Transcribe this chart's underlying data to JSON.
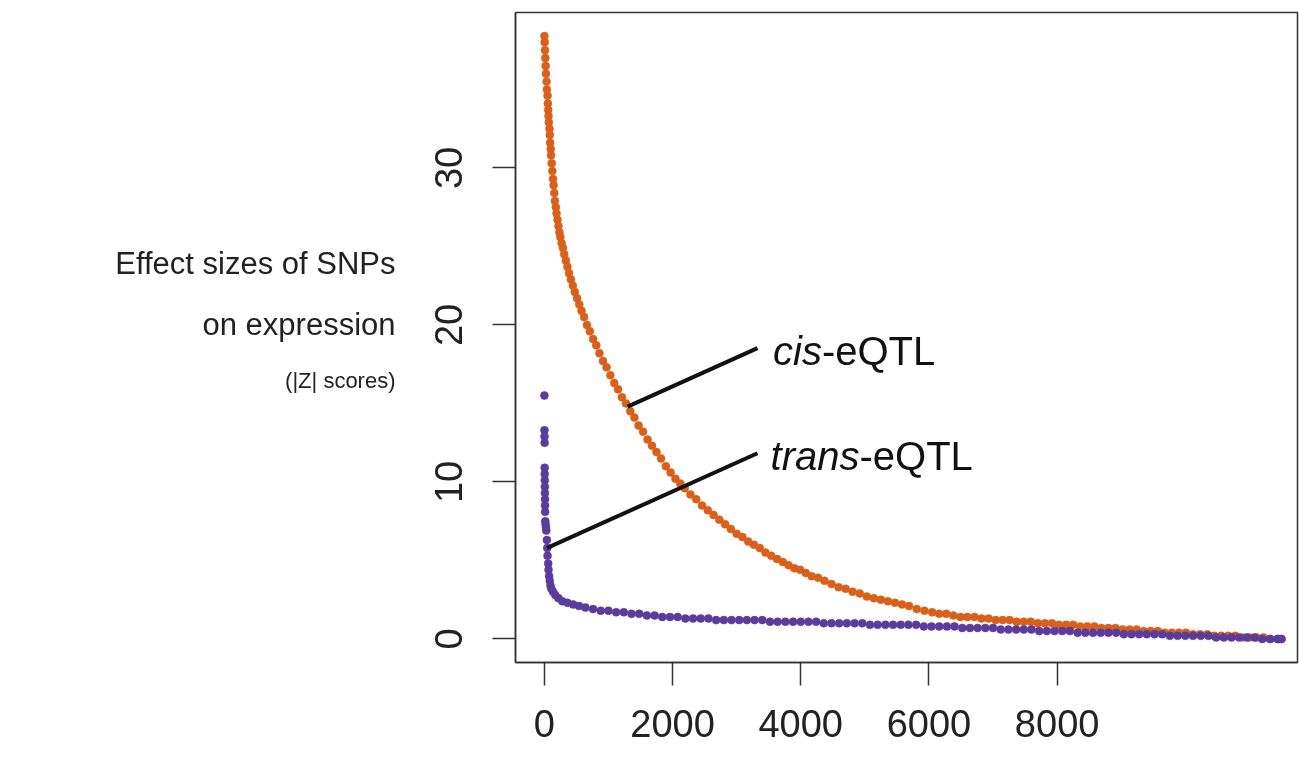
{
  "chart_data": {
    "type": "scatter",
    "ylabel": "Effect sizes of SNPs\non expression\n(|Z| scores)",
    "xlim": [
      -450,
      11750
    ],
    "ylim": [
      -1.5,
      39.9
    ],
    "xticks": [
      0,
      2000,
      4000,
      6000,
      8000
    ],
    "yticks": [
      0,
      10,
      20,
      30
    ],
    "marker": "circle",
    "series": [
      {
        "color": "#d9601a",
        "x": [
          1,
          5,
          10,
          15,
          20,
          25,
          35,
          40,
          50,
          55,
          60,
          65,
          70,
          80,
          85,
          90,
          100,
          105,
          115,
          125,
          135,
          145,
          155,
          165,
          180,
          190,
          205,
          220,
          235,
          250,
          270,
          290,
          310,
          335,
          360,
          385,
          415,
          445,
          475,
          510,
          545,
          580,
          620,
          665,
          710,
          760,
          810,
          860,
          915,
          970,
          1030,
          1090,
          1150,
          1210,
          1275,
          1340,
          1405,
          1470,
          1540,
          1610,
          1680,
          1750,
          1820,
          1895,
          1970,
          2045,
          2120,
          2190,
          2280,
          2370,
          2460,
          2550,
          2640,
          2730,
          2820,
          2910,
          3000,
          3090,
          3180,
          3270,
          3360,
          3450,
          3540,
          3630,
          3720,
          3810,
          3900,
          3990,
          4080,
          4170,
          4270,
          4370,
          4480,
          4590,
          4700,
          4810,
          4920,
          5030,
          5140,
          5250,
          5360,
          5470,
          5580,
          5690,
          5810,
          5930,
          6050,
          6160,
          6270,
          6380,
          6490,
          6600,
          6710,
          6820,
          6930,
          7040,
          7150,
          7260,
          7370,
          7480,
          7590,
          7700,
          7810,
          7920,
          8030,
          8140,
          8250,
          8360,
          8470,
          8580,
          8690,
          8800,
          8910,
          9020,
          9130,
          9240,
          9350,
          9460,
          9570,
          9680,
          9790,
          9900,
          10010,
          10120,
          10230,
          10340,
          10450,
          10560,
          10670,
          10780,
          10890,
          11000,
          11110,
          11220,
          11330,
          11440,
          11500
        ],
        "values": [
          38.4,
          38.0,
          37.5,
          37.0,
          36.5,
          36.0,
          35.5,
          35.0,
          34.6,
          34.1,
          33.7,
          33.3,
          32.9,
          32.5,
          32.1,
          31.6,
          31.2,
          30.8,
          30.3,
          29.8,
          29.3,
          28.9,
          28.4,
          27.9,
          27.5,
          27.1,
          26.7,
          26.3,
          25.9,
          25.6,
          25.2,
          24.9,
          24.5,
          24.1,
          23.7,
          23.3,
          22.9,
          22.5,
          22.1,
          21.7,
          21.3,
          20.9,
          20.5,
          20.0,
          19.6,
          19.1,
          18.7,
          18.2,
          17.7,
          17.3,
          16.8,
          16.3,
          15.9,
          15.4,
          15.0,
          14.5,
          14.1,
          13.6,
          13.2,
          12.7,
          12.3,
          11.9,
          11.5,
          11.0,
          10.6,
          10.2,
          9.9,
          9.6,
          9.2,
          8.9,
          8.5,
          8.2,
          7.9,
          7.6,
          7.3,
          7.0,
          6.7,
          6.5,
          6.2,
          6.0,
          5.8,
          5.5,
          5.3,
          5.1,
          4.9,
          4.7,
          4.5,
          4.4,
          4.2,
          4.0,
          3.9,
          3.7,
          3.5,
          3.3,
          3.2,
          3.0,
          2.9,
          2.7,
          2.6,
          2.5,
          2.4,
          2.3,
          2.2,
          2.1,
          1.9,
          1.8,
          1.7,
          1.6,
          1.6,
          1.5,
          1.4,
          1.4,
          1.4,
          1.3,
          1.3,
          1.2,
          1.2,
          1.2,
          1.1,
          1.1,
          1.1,
          1.0,
          1.0,
          1.0,
          0.9,
          0.9,
          0.9,
          0.8,
          0.8,
          0.8,
          0.7,
          0.7,
          0.7,
          0.6,
          0.6,
          0.6,
          0.5,
          0.5,
          0.5,
          0.4,
          0.4,
          0.4,
          0.4,
          0.3,
          0.3,
          0.3,
          0.2,
          0.2,
          0.2,
          0.2,
          0.1,
          0.1,
          0.1,
          0.1,
          0.0,
          0.0,
          0.0
        ]
      },
      {
        "color": "#5a3c9c",
        "x": [
          1,
          2,
          3,
          4,
          5,
          6,
          7,
          8,
          9,
          10,
          11,
          12,
          15,
          20,
          25,
          30,
          40,
          45,
          50,
          60,
          65,
          75,
          85,
          95,
          110,
          135,
          170,
          220,
          280,
          360,
          450,
          540,
          640,
          760,
          880,
          1000,
          1120,
          1240,
          1360,
          1480,
          1600,
          1720,
          1840,
          1960,
          2080,
          2200,
          2320,
          2440,
          2560,
          2680,
          2800,
          2920,
          3040,
          3160,
          3280,
          3400,
          3520,
          3640,
          3760,
          3880,
          4000,
          4120,
          4240,
          4360,
          4480,
          4600,
          4720,
          4840,
          4960,
          5080,
          5200,
          5320,
          5440,
          5560,
          5680,
          5800,
          5920,
          6040,
          6160,
          6280,
          6400,
          6520,
          6640,
          6760,
          6880,
          7000,
          7120,
          7240,
          7360,
          7480,
          7600,
          7720,
          7840,
          7960,
          8080,
          8200,
          8320,
          8440,
          8560,
          8680,
          8800,
          8920,
          9040,
          9160,
          9280,
          9400,
          9520,
          9640,
          9760,
          9880,
          10000,
          10120,
          10240,
          10360,
          10480,
          10600,
          10720,
          10840,
          10960,
          11080,
          11200,
          11320,
          11440,
          11500
        ],
        "values": [
          15.5,
          13.3,
          12.9,
          12.5,
          10.9,
          10.5,
          10.1,
          9.7,
          9.3,
          8.9,
          8.5,
          8.1,
          7.5,
          7.3,
          7.1,
          6.9,
          6.3,
          5.8,
          5.3,
          4.8,
          4.4,
          4.0,
          3.7,
          3.4,
          3.2,
          3.0,
          2.8,
          2.6,
          2.4,
          2.3,
          2.2,
          2.1,
          2.0,
          1.9,
          1.8,
          1.8,
          1.7,
          1.7,
          1.6,
          1.6,
          1.5,
          1.5,
          1.4,
          1.4,
          1.4,
          1.3,
          1.3,
          1.3,
          1.3,
          1.2,
          1.2,
          1.2,
          1.2,
          1.2,
          1.2,
          1.2,
          1.1,
          1.1,
          1.1,
          1.1,
          1.1,
          1.1,
          1.1,
          1.0,
          1.0,
          1.0,
          1.0,
          1.0,
          1.0,
          0.9,
          0.9,
          0.9,
          0.9,
          0.9,
          0.9,
          0.9,
          0.8,
          0.8,
          0.8,
          0.8,
          0.8,
          0.7,
          0.7,
          0.7,
          0.7,
          0.7,
          0.6,
          0.6,
          0.6,
          0.6,
          0.6,
          0.5,
          0.5,
          0.5,
          0.5,
          0.5,
          0.4,
          0.4,
          0.4,
          0.4,
          0.4,
          0.4,
          0.3,
          0.3,
          0.3,
          0.3,
          0.3,
          0.3,
          0.2,
          0.2,
          0.2,
          0.2,
          0.2,
          0.2,
          0.1,
          0.1,
          0.1,
          0.1,
          0.1,
          0.1,
          0.0,
          0.0,
          0.0,
          0.0
        ]
      }
    ],
    "annotations": [
      {
        "text": "cis-eQTL",
        "x": 1300,
        "y": 14.8
      },
      {
        "text": "trans-eQTL",
        "x": 45,
        "y": 5.8
      }
    ]
  }
}
